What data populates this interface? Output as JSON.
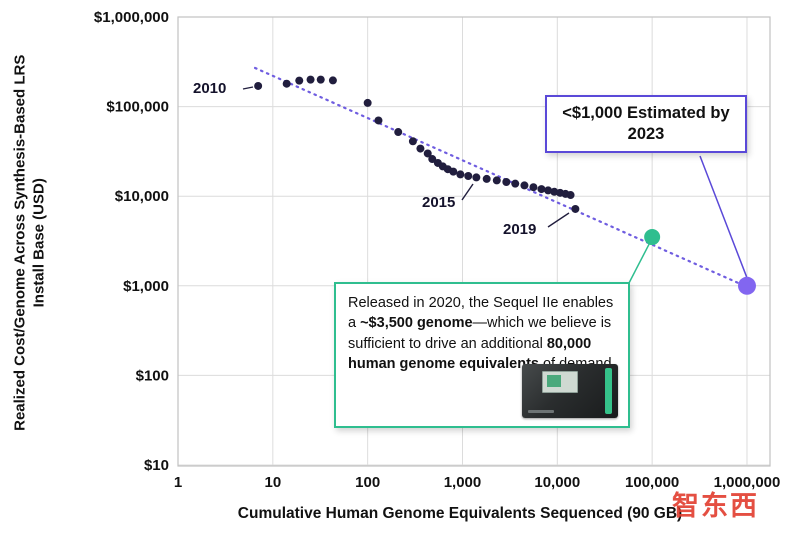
{
  "chart_data": {
    "type": "scatter",
    "x_axis": {
      "label": "Cumulative Human Genome Equivalents Sequenced (90 GB)",
      "scale": "log",
      "range": [
        1,
        1000000
      ],
      "tick_labels": [
        "1",
        "10",
        "100",
        "1,000",
        "10,000",
        "100,000",
        "1,000,000"
      ]
    },
    "y_axis": {
      "label_line1": "Realized Cost/Genome Across Synthesis-Based LRS",
      "label_line2": "Install Base (USD)",
      "scale": "log",
      "range": [
        10,
        1000000
      ],
      "tick_labels": [
        "$1,000,000",
        "$100,000",
        "$10,000",
        "$1,000",
        "$100",
        "$10"
      ]
    },
    "grid": true,
    "series": [
      {
        "name": "realized-cost-per-genome",
        "color": "#211e3e",
        "point_radius": 4,
        "points": [
          [
            7,
            170000
          ],
          [
            14,
            180000
          ],
          [
            19,
            195000
          ],
          [
            25,
            200000
          ],
          [
            32,
            200000
          ],
          [
            43,
            196000
          ],
          [
            100,
            110000
          ],
          [
            130,
            70000
          ],
          [
            210,
            52000
          ],
          [
            300,
            41000
          ],
          [
            360,
            34000
          ],
          [
            430,
            30000
          ],
          [
            480,
            26000
          ],
          [
            550,
            23500
          ],
          [
            620,
            21500
          ],
          [
            700,
            20000
          ],
          [
            800,
            18800
          ],
          [
            950,
            17500
          ],
          [
            1150,
            16800
          ],
          [
            1400,
            16200
          ],
          [
            1800,
            15600
          ],
          [
            2300,
            15000
          ],
          [
            2900,
            14400
          ],
          [
            3600,
            13800
          ],
          [
            4500,
            13200
          ],
          [
            5600,
            12600
          ],
          [
            6800,
            12000
          ],
          [
            8000,
            11600
          ],
          [
            9300,
            11200
          ],
          [
            10700,
            10900
          ],
          [
            12200,
            10600
          ],
          [
            13800,
            10300
          ],
          [
            15500,
            7200
          ]
        ]
      }
    ],
    "highlight_points": [
      {
        "name": "sequel-iie-3500-genome",
        "x": 100000,
        "y": 3500,
        "color": "#2fbe8f",
        "radius": 8
      },
      {
        "name": "sub-1000-estimated-2023",
        "x": 1000000,
        "y": 1000,
        "color": "#8266f0",
        "radius": 9
      }
    ],
    "trend_line": {
      "color": "#6f5de0",
      "style": "dotted",
      "from": [
        6.5,
        270000
      ],
      "to": [
        1050000,
        950
      ]
    },
    "point_labels": [
      {
        "text": "2010",
        "x": 7,
        "y": 170000
      },
      {
        "text": "2015",
        "x": 1400,
        "y": 16200
      },
      {
        "text": "2019",
        "x": 15500,
        "y": 7200
      }
    ]
  },
  "annotations": {
    "estimate_box": {
      "text": "<$1,000 Estimated by 2023",
      "border_color": "#5a49d8"
    },
    "sequel_box": {
      "part1": "Released in 2020, the Sequel IIe enables a ",
      "bold1": "~$3,500 genome",
      "part2": "—which we believe is sufficient to drive an additional ",
      "bold2": "80,000 human genome equivalents",
      "part3": " of demand.",
      "border_color": "#2fbe8f"
    }
  },
  "watermark": {
    "text": "智东西",
    "color": "#e23d2e"
  }
}
